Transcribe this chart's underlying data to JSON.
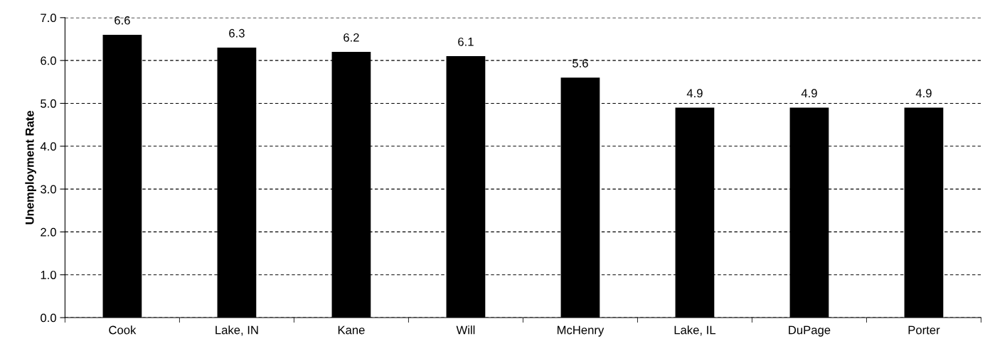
{
  "chart_data": {
    "type": "bar",
    "ylabel": "Unemployment Rate",
    "categories": [
      "Cook",
      "Lake, IN",
      "Kane",
      "Will",
      "McHenry",
      "Lake, IL",
      "DuPage",
      "Porter"
    ],
    "values": [
      6.6,
      6.3,
      6.2,
      6.1,
      5.6,
      4.9,
      4.9,
      4.9
    ],
    "color": "#000000",
    "ylim": [
      0,
      7
    ],
    "yticks": [
      {
        "value": 0,
        "label": "0.0"
      },
      {
        "value": 1,
        "label": "1.0"
      },
      {
        "value": 2,
        "label": "2.0"
      },
      {
        "value": 3,
        "label": "3.0"
      },
      {
        "value": 4,
        "label": "4.0"
      },
      {
        "value": 5,
        "label": "5.0"
      },
      {
        "value": 6,
        "label": "6.0"
      },
      {
        "value": 7,
        "label": "7.0"
      }
    ],
    "grid": "y",
    "data_labels": true,
    "legend": false
  }
}
